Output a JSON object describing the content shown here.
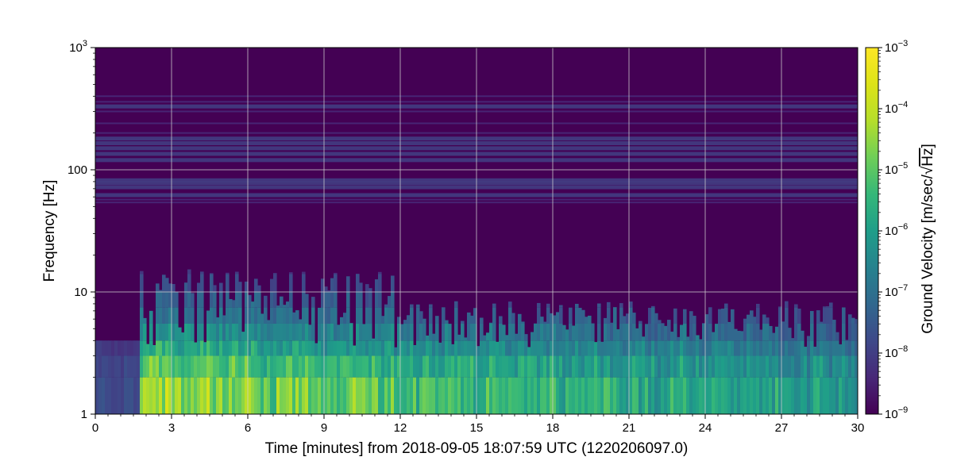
{
  "chart_data": {
    "type": "heatmap",
    "title": "",
    "xlabel": "Time [minutes] from 2018-09-05 18:07:59 UTC (1220206097.0)",
    "ylabel": "Frequency [Hz]",
    "colorbar_label": "Ground Velocity [m/sec/",
    "colorbar_label_radical": "Hz",
    "colorbar_label_close": "]",
    "colormap": "viridis",
    "x": {
      "scale": "linear",
      "range": [
        0,
        30
      ],
      "ticks": [
        0,
        3,
        6,
        9,
        12,
        15,
        18,
        21,
        24,
        27,
        30
      ],
      "tick_labels": [
        "0",
        "3",
        "6",
        "9",
        "12",
        "15",
        "18",
        "21",
        "24",
        "27",
        "30"
      ]
    },
    "y": {
      "scale": "log",
      "range": [
        1,
        1000
      ],
      "ticks": [
        1,
        10,
        100,
        1000
      ],
      "tick_labels": [
        {
          "base": "1",
          "exp": ""
        },
        {
          "base": "10",
          "exp": ""
        },
        {
          "base": "100",
          "exp": ""
        },
        {
          "base": "10",
          "exp": "3"
        }
      ]
    },
    "color_scale": {
      "scale": "log",
      "range": [
        1e-09,
        0.001
      ],
      "ticks": [
        {
          "base": "10",
          "exp": "−9"
        },
        {
          "base": "10",
          "exp": "−8"
        },
        {
          "base": "10",
          "exp": "−7"
        },
        {
          "base": "10",
          "exp": "−6"
        },
        {
          "base": "10",
          "exp": "−5"
        },
        {
          "base": "10",
          "exp": "−4"
        },
        {
          "base": "10",
          "exp": "−3"
        }
      ]
    },
    "grid": true,
    "features": {
      "event_onset_minutes": 1.8,
      "narrowband_lines_hz": [
        54,
        57,
        62,
        72,
        78,
        82,
        120,
        135,
        150,
        165,
        180,
        200,
        240,
        300,
        330,
        360,
        400
      ],
      "low_freq_peak_hz": [
        1,
        3
      ],
      "low_freq_peak_level": 2e-06,
      "background_level": 1e-09
    }
  }
}
